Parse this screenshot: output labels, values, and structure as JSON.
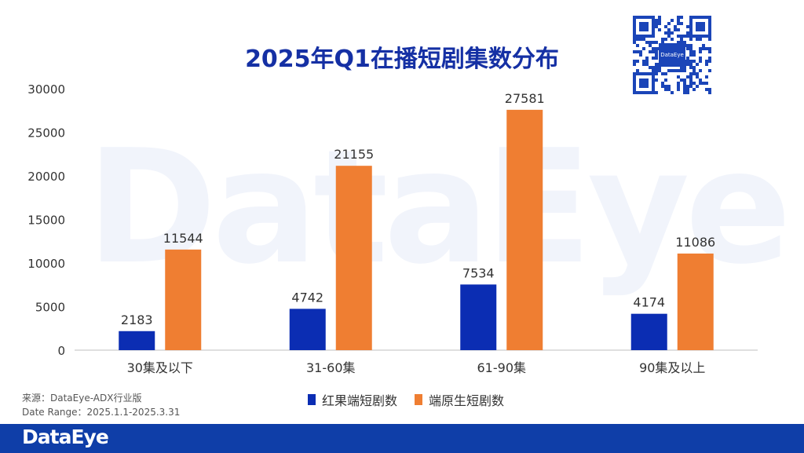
{
  "watermark_text": "DataEye",
  "title": "2025年Q1在播短剧集数分布",
  "qr_logo_text": "DataEye",
  "source": {
    "line1": "来源：DataEye-ADX行业版",
    "line2": "Date Range：2025.1.1-2025.3.31"
  },
  "footer": {
    "logo": "DataEye"
  },
  "colors": {
    "series_blue": "#0b2db3",
    "series_orange": "#ef7e32",
    "title": "#1530a4",
    "footer": "#0f3ea8"
  },
  "chart_data": {
    "type": "bar",
    "title": "2025年Q1在播短剧集数分布",
    "categories": [
      "30集及以下",
      "31-60集",
      "61-90集",
      "90集及以上"
    ],
    "series": [
      {
        "name": "红果端短剧数",
        "values": [
          2183,
          4742,
          7534,
          4174
        ],
        "color": "#0b2db3"
      },
      {
        "name": "端原生短剧数",
        "values": [
          11544,
          21155,
          27581,
          11086
        ],
        "color": "#ef7e32"
      }
    ],
    "ylim": [
      0,
      30000
    ],
    "yticks": [
      0,
      5000,
      10000,
      15000,
      20000,
      25000,
      30000
    ],
    "grid": false,
    "legend": "bottom-center"
  }
}
